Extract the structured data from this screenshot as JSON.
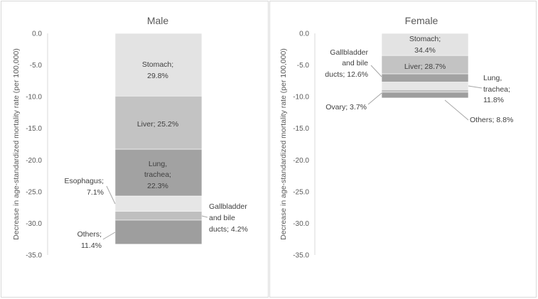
{
  "chart_data": [
    {
      "type": "bar",
      "stacked": true,
      "title": "Male",
      "ylabel": "Decrease in age-standardized mortality rate (per 100,000)",
      "ylim": [
        -35,
        0
      ],
      "yticks": [
        "0.0",
        "-5.0",
        "-10.0",
        "-15.0",
        "-20.0",
        "-25.0",
        "-30.0",
        "-35.0"
      ],
      "grid": false,
      "series": [
        {
          "name": "Stomach",
          "value": -9.9,
          "label": "Stomach;\n29.8%",
          "color": "#e3e3e3"
        },
        {
          "name": "Liver",
          "value": -8.4,
          "label": "Liver; 25.2%",
          "color": "#c3c3c3"
        },
        {
          "name": "Lung, trachea",
          "value": -7.4,
          "label": "Lung,\ntrachea;\n22.3%",
          "color": "#a2a2a2"
        },
        {
          "name": "Esophagus",
          "value": -2.4,
          "label": "Esophagus;\n7.1%",
          "color": "#e6e6e6"
        },
        {
          "name": "Gallbladder and bile ducts",
          "value": -1.4,
          "label": "Gallbladder\nand bile\nducts; 4.2%",
          "color": "#bfbfbf"
        },
        {
          "name": "Others",
          "value": -3.8,
          "label": "Others;\n11.4%",
          "color": "#9e9e9e"
        }
      ]
    },
    {
      "type": "bar",
      "stacked": true,
      "title": "Female",
      "ylabel": "Decrease in age-standardized mortality rate (per 100,000)",
      "ylim": [
        -35,
        0
      ],
      "yticks": [
        "0.0",
        "-5.0",
        "-10.0",
        "-15.0",
        "-20.0",
        "-25.0",
        "-30.0",
        "-35.0"
      ],
      "grid": false,
      "series": [
        {
          "name": "Stomach",
          "value": -3.5,
          "label": "Stomach;\n34.4%",
          "color": "#e3e3e3"
        },
        {
          "name": "Liver",
          "value": -2.9,
          "label": "Liver; 28.7%",
          "color": "#c3c3c3"
        },
        {
          "name": "Gallbladder and bile ducts",
          "value": -1.3,
          "label": "Gallbladder\nand bile\nducts; 12.6%",
          "color": "#a2a2a2"
        },
        {
          "name": "Lung, trachea",
          "value": -1.2,
          "label": "Lung,\ntrachea;\n11.8%",
          "color": "#e6e6e6"
        },
        {
          "name": "Ovary",
          "value": -0.4,
          "label": "Ovary; 3.7%",
          "color": "#bfbfbf"
        },
        {
          "name": "Others",
          "value": -0.9,
          "label": "Others; 8.8%",
          "color": "#9e9e9e"
        }
      ]
    }
  ]
}
